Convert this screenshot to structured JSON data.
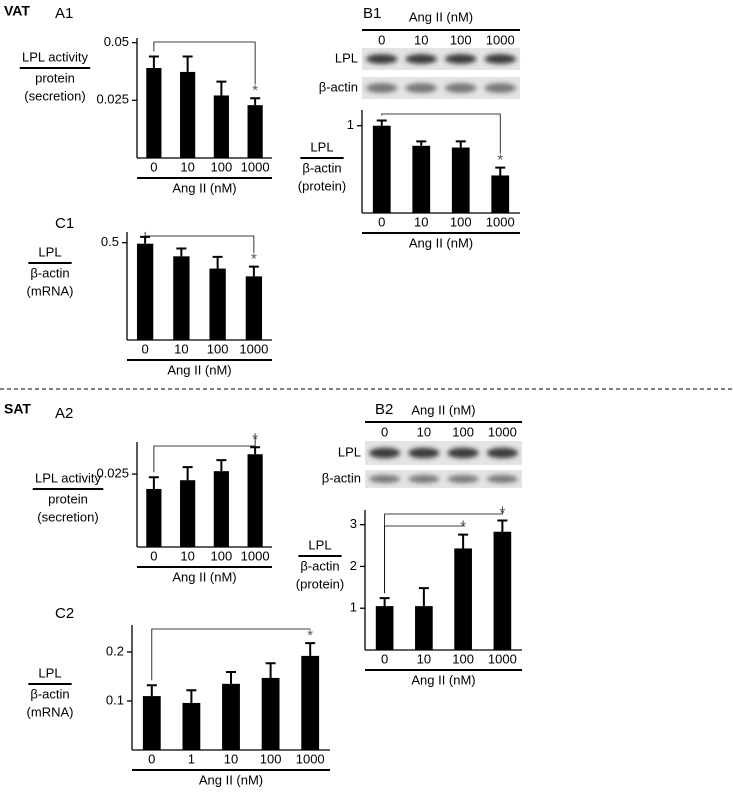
{
  "section_labels": [
    "VAT",
    "SAT"
  ],
  "chart_data": [
    {
      "panel": "A1",
      "type": "bar",
      "ylabel": [
        "LPL activity",
        "protein",
        "(secretion)"
      ],
      "xlabel": "Ang II (nM)",
      "categories": [
        "0",
        "10",
        "100",
        "1000"
      ],
      "values": [
        0.039,
        0.0373,
        0.0271,
        0.0229
      ],
      "errors": [
        0.005,
        0.0067,
        0.006,
        0.003
      ],
      "color": "#000000",
      "ylim": [
        0,
        0.052
      ],
      "yticks": [
        0.025,
        0.05
      ],
      "significance": [
        {
          "from": 0,
          "to": 3,
          "label": "*"
        }
      ]
    },
    {
      "panel": "B1",
      "type": "bar",
      "blot": {
        "header": "Ang II (nM)",
        "lanes": [
          "0",
          "10",
          "100",
          "1000"
        ],
        "rows": [
          "LPL",
          "β-actin"
        ]
      },
      "ylabel": [
        "LPL",
        "β-actin",
        "(protein)"
      ],
      "xlabel": "Ang II (nM)",
      "categories": [
        "0",
        "10",
        "100",
        "1000"
      ],
      "values": [
        1.0,
        0.77,
        0.75,
        0.43
      ],
      "errors": [
        0.06,
        0.05,
        0.07,
        0.09
      ],
      "color": "#000000",
      "ylim": [
        0,
        1.18
      ],
      "yticks": [
        1
      ],
      "significance": [
        {
          "from": 0,
          "to": 3,
          "label": "*"
        }
      ]
    },
    {
      "panel": "C1",
      "type": "bar",
      "ylabel": [
        "LPL",
        "β-actin",
        "(mRNA)"
      ],
      "xlabel": "Ang II (nM)",
      "categories": [
        "0",
        "10",
        "100",
        "1000"
      ],
      "values": [
        0.495,
        0.43,
        0.367,
        0.327
      ],
      "errors": [
        0.035,
        0.04,
        0.06,
        0.05
      ],
      "color": "#000000",
      "ylim": [
        0,
        0.555
      ],
      "yticks": [
        0.5
      ],
      "significance": [
        {
          "from": 0,
          "to": 3,
          "label": "*"
        }
      ]
    },
    {
      "panel": "A2",
      "type": "bar",
      "ylabel": [
        "LPL activity",
        "protein",
        "(secretion)"
      ],
      "xlabel": "Ang II (nM)",
      "categories": [
        "0",
        "10",
        "100",
        "1000"
      ],
      "values": [
        0.0199,
        0.0229,
        0.026,
        0.0318
      ],
      "errors": [
        0.004,
        0.0045,
        0.0038,
        0.0024
      ],
      "color": "#000000",
      "ylim": [
        0,
        0.036
      ],
      "yticks": [
        0.025
      ],
      "significance": [
        {
          "from": 0,
          "to": 3,
          "label": "*"
        }
      ]
    },
    {
      "panel": "B2",
      "type": "bar",
      "blot": {
        "header": "Ang II (nM)",
        "lanes": [
          "0",
          "10",
          "100",
          "1000"
        ],
        "rows": [
          "LPL",
          "β-actin"
        ]
      },
      "ylabel": [
        "LPL",
        "β-actin",
        "(protein)"
      ],
      "xlabel": "Ang II (nM)",
      "categories": [
        "0",
        "10",
        "100",
        "1000"
      ],
      "values": [
        1.05,
        1.05,
        2.43,
        2.83
      ],
      "errors": [
        0.19,
        0.43,
        0.33,
        0.27
      ],
      "color": "#000000",
      "ylim": [
        0,
        3.35
      ],
      "yticks": [
        1,
        2,
        3
      ],
      "significance": [
        {
          "from": 0,
          "to": 2,
          "label": "*"
        },
        {
          "from": 0,
          "to": 3,
          "label": "*"
        }
      ]
    },
    {
      "panel": "C2",
      "type": "bar",
      "ylabel": [
        "LPL",
        "β-actin",
        "(mRNA)"
      ],
      "xlabel": "Ang II (nM)",
      "categories": [
        "0",
        "1",
        "10",
        "100",
        "1000"
      ],
      "values": [
        0.11,
        0.096,
        0.135,
        0.147,
        0.192
      ],
      "errors": [
        0.022,
        0.026,
        0.024,
        0.03,
        0.026
      ],
      "color": "#000000",
      "ylim": [
        0,
        0.255
      ],
      "yticks": [
        0.1,
        0.2
      ],
      "significance": [
        {
          "from": 0,
          "to": 4,
          "label": "*"
        }
      ]
    }
  ]
}
